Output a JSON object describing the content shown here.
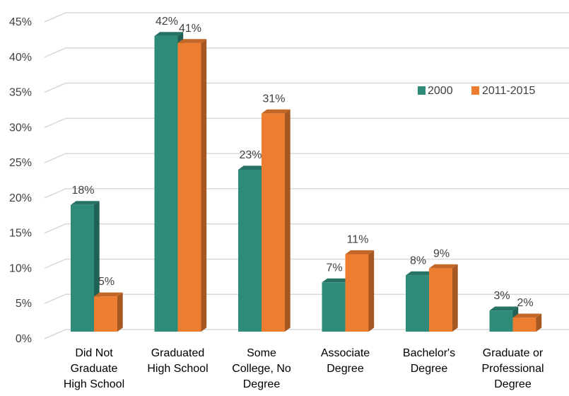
{
  "chart_data": {
    "type": "bar",
    "title": "",
    "xlabel": "",
    "ylabel": "",
    "ylim": [
      0,
      45
    ],
    "y_ticks": [
      "0%",
      "5%",
      "10%",
      "15%",
      "20%",
      "25%",
      "30%",
      "35%",
      "40%",
      "45%"
    ],
    "grid": true,
    "legend_position": "top-right",
    "categories": [
      [
        "Did Not",
        "Graduate",
        "High School"
      ],
      [
        "Graduated",
        "High School"
      ],
      [
        "Some",
        "College, No",
        "Degree"
      ],
      [
        "Associate",
        "Degree"
      ],
      [
        "Bachelor's",
        "Degree"
      ],
      [
        "Graduate or",
        "Professional",
        "Degree"
      ]
    ],
    "series": [
      {
        "name": "2000",
        "color": "#2E8B7A",
        "values": [
          18,
          42,
          23,
          7,
          8,
          3
        ],
        "labels": [
          "18%",
          "42%",
          "23%",
          "7%",
          "8%",
          "3%"
        ]
      },
      {
        "name": "2011-2015",
        "color": "#ED7D31",
        "values": [
          5,
          41,
          31,
          11,
          9,
          2
        ],
        "labels": [
          "5%",
          "41%",
          "31%",
          "11%",
          "9%",
          "2%"
        ]
      }
    ]
  }
}
